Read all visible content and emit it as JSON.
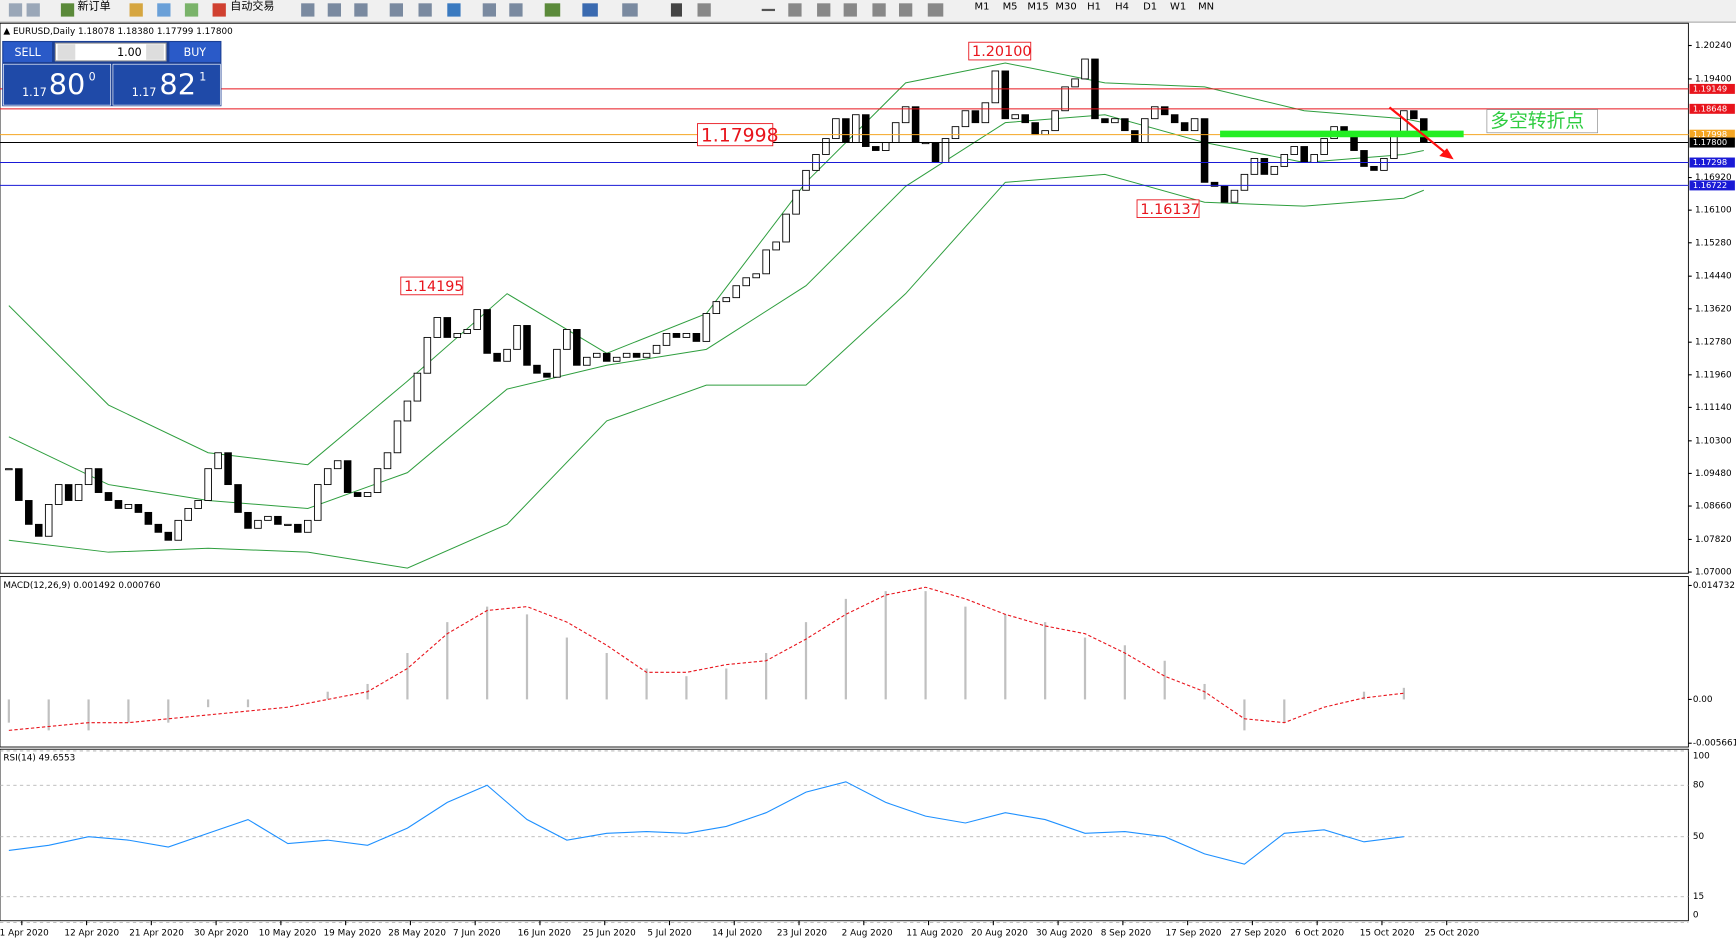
{
  "toolbar": {
    "buttons": [
      "新订单",
      "自动交易"
    ],
    "timeframes": [
      "M1",
      "M5",
      "M15",
      "M30",
      "H1",
      "H4",
      "D1",
      "W1",
      "MN"
    ]
  },
  "trade_panel": {
    "sell": "SELL",
    "buy": "BUY",
    "lots": "1.00",
    "sell_price": [
      "1.17",
      "80",
      "0"
    ],
    "buy_price": [
      "1.17",
      "82",
      "1"
    ]
  },
  "marker_text": "多空转折点",
  "chart_data": [
    {
      "type": "candlestick",
      "title": "EURUSD,Daily 1.18078 1.18380 1.17799 1.17800",
      "close": [
        1.096,
        1.088,
        1.082,
        1.079,
        1.087,
        1.092,
        1.088,
        1.092,
        1.096,
        1.09,
        1.088,
        1.086,
        1.087,
        1.085,
        1.082,
        1.08,
        1.078,
        1.083,
        1.086,
        1.088,
        1.096,
        1.1,
        1.092,
        1.085,
        1.081,
        1.083,
        1.084,
        1.082,
        1.082,
        1.08,
        1.083,
        1.092,
        1.096,
        1.098,
        1.09,
        1.089,
        1.09,
        1.096,
        1.1,
        1.108,
        1.113,
        1.12,
        1.129,
        1.134,
        1.129,
        1.13,
        1.131,
        1.136,
        1.125,
        1.123,
        1.126,
        1.132,
        1.122,
        1.12,
        1.119,
        1.126,
        1.131,
        1.122,
        1.124,
        1.125,
        1.123,
        1.124,
        1.125,
        1.124,
        1.125,
        1.127,
        1.13,
        1.129,
        1.13,
        1.128,
        1.135,
        1.138,
        1.139,
        1.142,
        1.144,
        1.145,
        1.151,
        1.153,
        1.16,
        1.166,
        1.171,
        1.175,
        1.179,
        1.184,
        1.178,
        1.185,
        1.177,
        1.176,
        1.178,
        1.183,
        1.187,
        1.178,
        1.178,
        1.173,
        1.179,
        1.182,
        1.186,
        1.183,
        1.188,
        1.196,
        1.184,
        1.185,
        1.183,
        1.18,
        1.181,
        1.186,
        1.192,
        1.194,
        1.199,
        1.184,
        1.183,
        1.184,
        1.181,
        1.178,
        1.184,
        1.187,
        1.185,
        1.183,
        1.181,
        1.184,
        1.168,
        1.167,
        1.163,
        1.166,
        1.17,
        1.174,
        1.17,
        1.172,
        1.175,
        1.177,
        1.173,
        1.175,
        1.179,
        1.182,
        1.18,
        1.176,
        1.172,
        1.171,
        1.174,
        1.18,
        1.186,
        1.184,
        1.178
      ],
      "up_color": "#ffffff",
      "down_color": "#000000",
      "ylim": [
        1.0697,
        1.208
      ],
      "yticks": [
        {
          "value": 1.2024,
          "label": "1.20240"
        },
        {
          "value": 1.194,
          "label": "1.19400"
        },
        {
          "value": 1.1692,
          "label": "1.16920"
        },
        {
          "value": 1.161,
          "label": "1.16100"
        },
        {
          "value": 1.1528,
          "label": "1.15280"
        },
        {
          "value": 1.1444,
          "label": "1.14440"
        },
        {
          "value": 1.1362,
          "label": "1.13620"
        },
        {
          "value": 1.1278,
          "label": "1.12780"
        },
        {
          "value": 1.1196,
          "label": "1.11960"
        },
        {
          "value": 1.1114,
          "label": "1.11140"
        },
        {
          "value": 1.103,
          "label": "1.10300"
        },
        {
          "value": 1.0948,
          "label": "1.09480"
        },
        {
          "value": 1.0866,
          "label": "1.08660"
        },
        {
          "value": 1.0782,
          "label": "1.07820"
        },
        {
          "value": 1.07,
          "label": "1.07000"
        }
      ],
      "x_labels": [
        "1 Apr 2020",
        "12 Apr 2020",
        "21 Apr 2020",
        "30 Apr 2020",
        "10 May 2020",
        "19 May 2020",
        "28 May 2020",
        "7 Jun 2020",
        "16 Jun 2020",
        "25 Jun 2020",
        "5 Jul 2020",
        "14 Jul 2020",
        "23 Jul 2020",
        "2 Aug 2020",
        "11 Aug 2020",
        "20 Aug 2020",
        "30 Aug 2020",
        "8 Sep 2020",
        "17 Sep 2020",
        "27 Sep 2020",
        "6 Oct 2020",
        "15 Oct 2020",
        "25 Oct 2020"
      ],
      "bands": {
        "color": "#2e9e3e",
        "x": [
          0,
          10,
          20,
          30,
          40,
          50,
          60,
          70,
          80,
          90,
          100,
          110,
          120,
          130,
          140,
          142
        ],
        "upper": [
          1.137,
          1.112,
          1.1,
          1.097,
          1.118,
          1.14,
          1.125,
          1.135,
          1.168,
          1.193,
          1.198,
          1.193,
          1.192,
          1.186,
          1.184,
          1.183
        ],
        "middle": [
          1.104,
          1.092,
          1.088,
          1.086,
          1.095,
          1.116,
          1.122,
          1.126,
          1.142,
          1.167,
          1.183,
          1.185,
          1.178,
          1.173,
          1.175,
          1.176
        ],
        "lower": [
          1.078,
          1.075,
          1.076,
          1.075,
          1.071,
          1.082,
          1.108,
          1.117,
          1.117,
          1.14,
          1.168,
          1.17,
          1.163,
          1.162,
          1.164,
          1.166
        ]
      },
      "levels": [
        {
          "value": 1.19149,
          "color": "#e8141c"
        },
        {
          "value": 1.18648,
          "color": "#e8141c"
        },
        {
          "value": 1.17998,
          "color": "#f5a623"
        },
        {
          "value": 1.178,
          "label": "1.17800",
          "color": "#000000"
        },
        {
          "value": 1.17298,
          "color": "#1a1ad6"
        },
        {
          "value": 1.16722,
          "color": "#1a1ad6"
        }
      ],
      "annotations": [
        {
          "value": 1.201,
          "label": "1.20100"
        },
        {
          "value": 1.17998,
          "label": "1.17998"
        },
        {
          "value": 1.14195,
          "label": "1.14195"
        },
        {
          "value": 1.16137,
          "label": "1.16137"
        }
      ]
    },
    {
      "type": "macd",
      "title": "MACD(12,26,9) 0.001492 0.000760",
      "x": [
        0,
        4,
        8,
        12,
        16,
        20,
        24,
        28,
        32,
        36,
        40,
        44,
        48,
        52,
        56,
        60,
        64,
        68,
        72,
        76,
        80,
        84,
        88,
        92,
        96,
        100,
        104,
        108,
        112,
        116,
        120,
        124,
        128,
        132,
        136,
        140
      ],
      "histogram": [
        -0.003,
        -0.004,
        -0.004,
        -0.003,
        -0.003,
        -0.001,
        -0.001,
        0,
        0.001,
        0.002,
        0.006,
        0.01,
        0.012,
        0.011,
        0.008,
        0.006,
        0.004,
        0.003,
        0.004,
        0.006,
        0.01,
        0.013,
        0.014,
        0.014,
        0.012,
        0.011,
        0.01,
        0.008,
        0.007,
        0.005,
        0.002,
        -0.004,
        -0.003,
        0,
        0.001,
        0.0015
      ],
      "signal": [
        -0.004,
        -0.0035,
        -0.003,
        -0.003,
        -0.0025,
        -0.002,
        -0.0015,
        -0.001,
        0,
        0.001,
        0.004,
        0.0085,
        0.0115,
        0.012,
        0.01,
        0.007,
        0.0035,
        0.0035,
        0.0045,
        0.005,
        0.0078,
        0.011,
        0.0135,
        0.0145,
        0.013,
        0.011,
        0.0095,
        0.0085,
        0.006,
        0.003,
        0.001,
        -0.0025,
        -0.003,
        -0.001,
        0.0002,
        0.0008
      ],
      "histogram_color": "#c0c0c0",
      "signal_color": "#e8141c",
      "ylim": [
        -0.00615,
        0.01588
      ],
      "yticks": [
        0.014732,
        {
          "value": 0,
          "label": "0.00"
        },
        -0.005661
      ]
    },
    {
      "type": "line",
      "title": "RSI(14) 49.6553",
      "x": [
        0,
        4,
        8,
        12,
        16,
        20,
        24,
        28,
        32,
        36,
        40,
        44,
        48,
        52,
        56,
        60,
        64,
        68,
        72,
        76,
        80,
        84,
        88,
        92,
        96,
        100,
        104,
        108,
        112,
        116,
        120,
        124,
        128,
        132,
        136,
        140
      ],
      "values": [
        42,
        45,
        50,
        48,
        44,
        52,
        60,
        46,
        48,
        45,
        55,
        70,
        80,
        60,
        48,
        52,
        53,
        52,
        56,
        64,
        76,
        82,
        70,
        62,
        58,
        64,
        60,
        52,
        53,
        50,
        40,
        34,
        52,
        54,
        47,
        50
      ],
      "color": "#1e90ff",
      "ylim": [
        1,
        101
      ],
      "yticks": [
        100,
        80,
        50,
        15,
        0
      ],
      "grid": true
    }
  ]
}
